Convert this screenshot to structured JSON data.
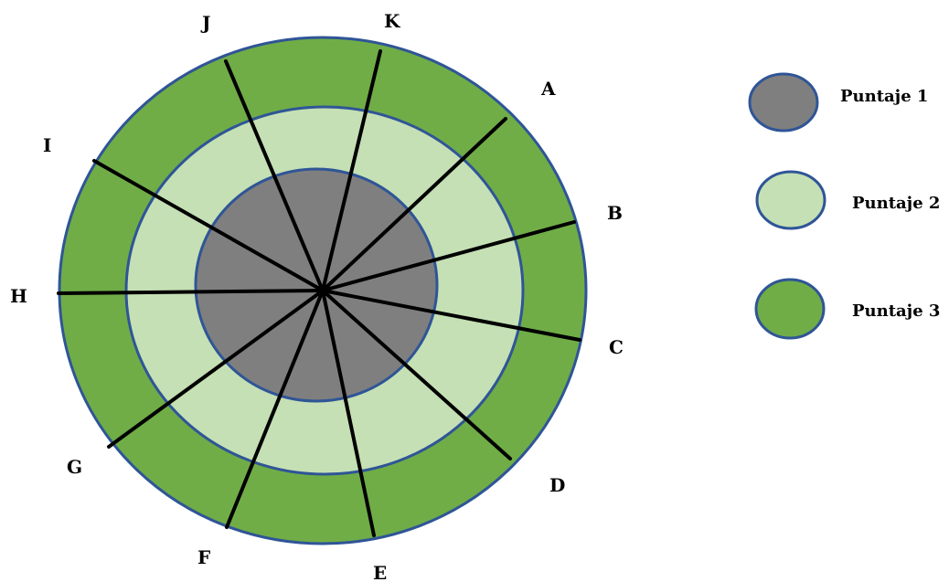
{
  "colors": {
    "score1_fill": "#7f7f7f",
    "score2_fill": "#c5e0b4",
    "score3_fill": "#70ad47",
    "ring_stroke": "#2f5597",
    "spoke_stroke": "#000000"
  },
  "spokes": [
    "A",
    "B",
    "C",
    "D",
    "E",
    "F",
    "G",
    "H",
    "I",
    "J",
    "K"
  ],
  "legend": [
    {
      "label": "Puntaje 1",
      "color": "#7f7f7f"
    },
    {
      "label": "Puntaje 2",
      "color": "#c5e0b4"
    },
    {
      "label": "Puntaje 3",
      "color": "#70ad47"
    }
  ]
}
